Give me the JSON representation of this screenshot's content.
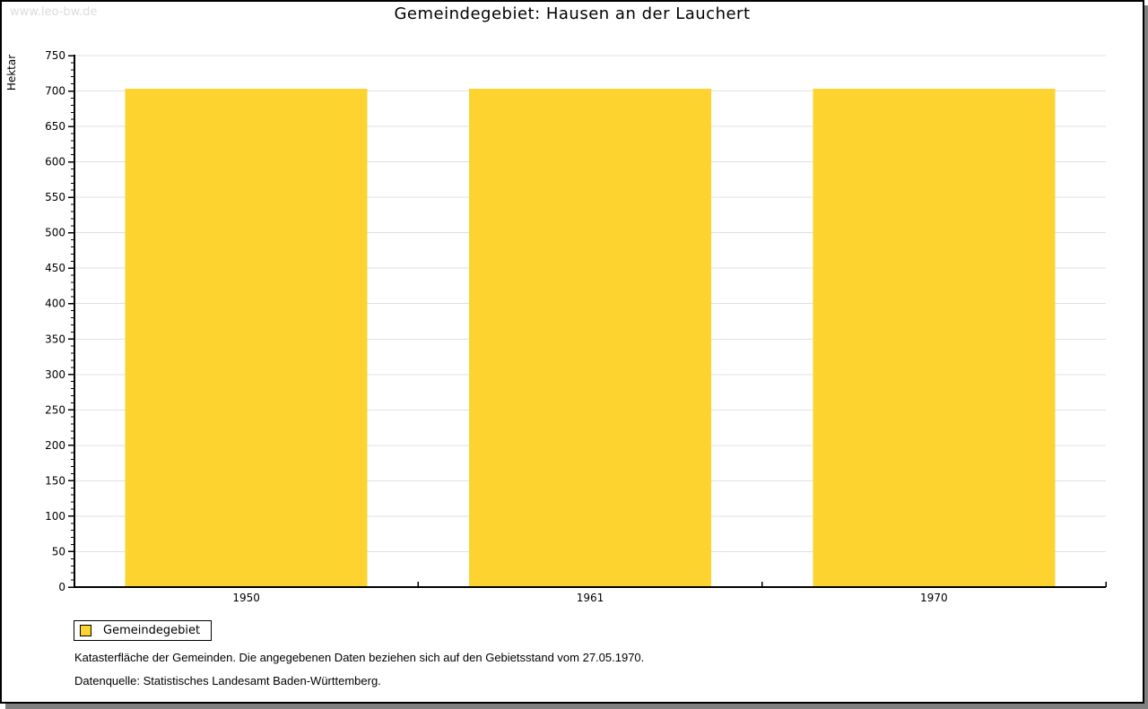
{
  "watermark": "www.leo-bw.de",
  "title": "Gemeindegebiet: Hausen an der Lauchert",
  "chart_data": {
    "type": "bar",
    "title": "Gemeindegebiet: Hausen an der Lauchert",
    "categories": [
      "1950",
      "1961",
      "1970"
    ],
    "series": [
      {
        "name": "Gemeindegebiet",
        "values": [
          703,
          703,
          703
        ]
      }
    ],
    "xlabel": "",
    "ylabel": "Hektar",
    "ylim": [
      0,
      750
    ],
    "y_major_step": 50,
    "y_minor_step": 10,
    "y_tick_labels": [
      0,
      50,
      100,
      150,
      200,
      250,
      300,
      350,
      400,
      450,
      500,
      550,
      600,
      650,
      700,
      750
    ],
    "grid": true,
    "legend_position": "bottom-left",
    "bar_color": "#FCD32F"
  },
  "legend": {
    "items": [
      {
        "label": "Gemeindegebiet",
        "color": "#FCD32F"
      }
    ]
  },
  "footer": {
    "line1": "Katasterfläche der Gemeinden. Die angegebenen Daten beziehen sich auf den Gebietsstand vom 27.05.1970.",
    "line2": "Datenquelle: Statistisches Landesamt Baden-Württemberg."
  },
  "colors": {
    "bar": "#FCD32F",
    "grid": "#E0E0E0",
    "axis": "#000000",
    "watermark": "#DCDCDC",
    "shadow": "#808080"
  }
}
